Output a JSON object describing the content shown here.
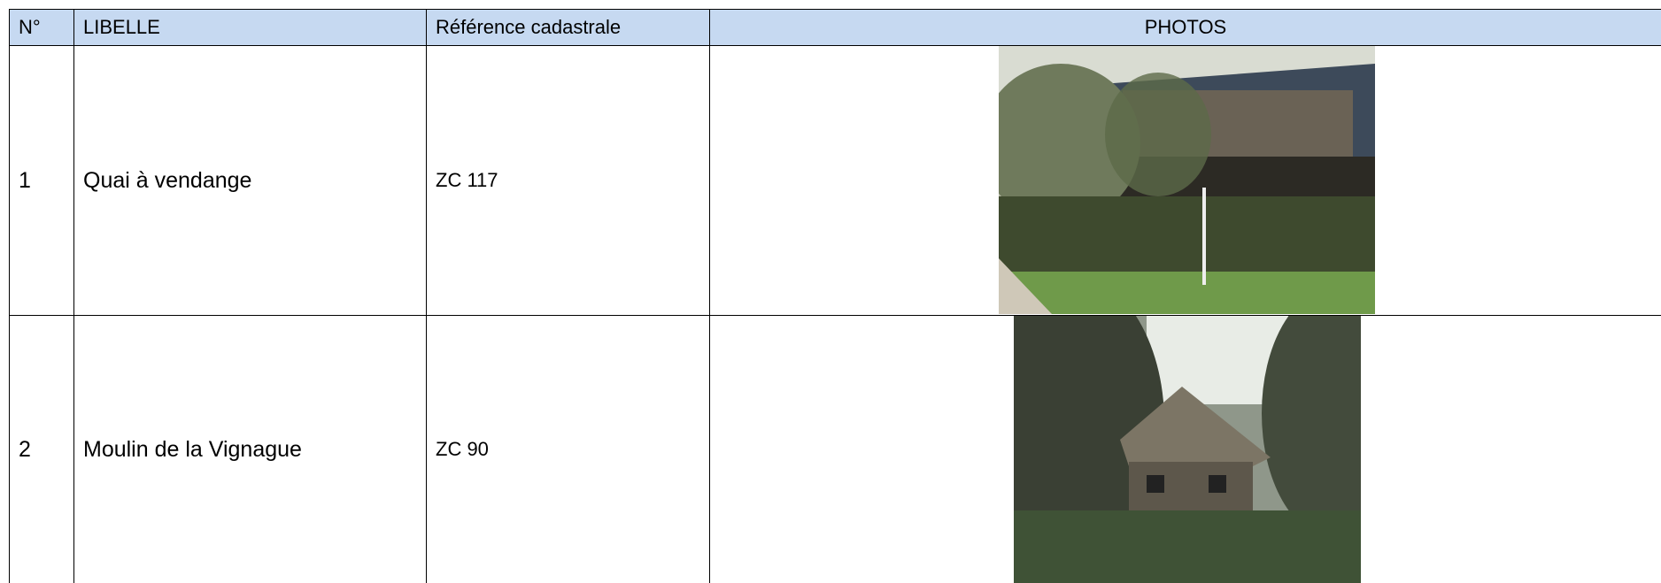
{
  "table": {
    "header": [
      "N°",
      "LIBELLE",
      "Référence cadastrale",
      "PHOTOS"
    ],
    "rows": [
      [
        "1",
        "Quai à vendange",
        "ZC 117"
      ],
      [
        "2",
        "Moulin de la Vignague",
        "ZC 90"
      ]
    ]
  }
}
